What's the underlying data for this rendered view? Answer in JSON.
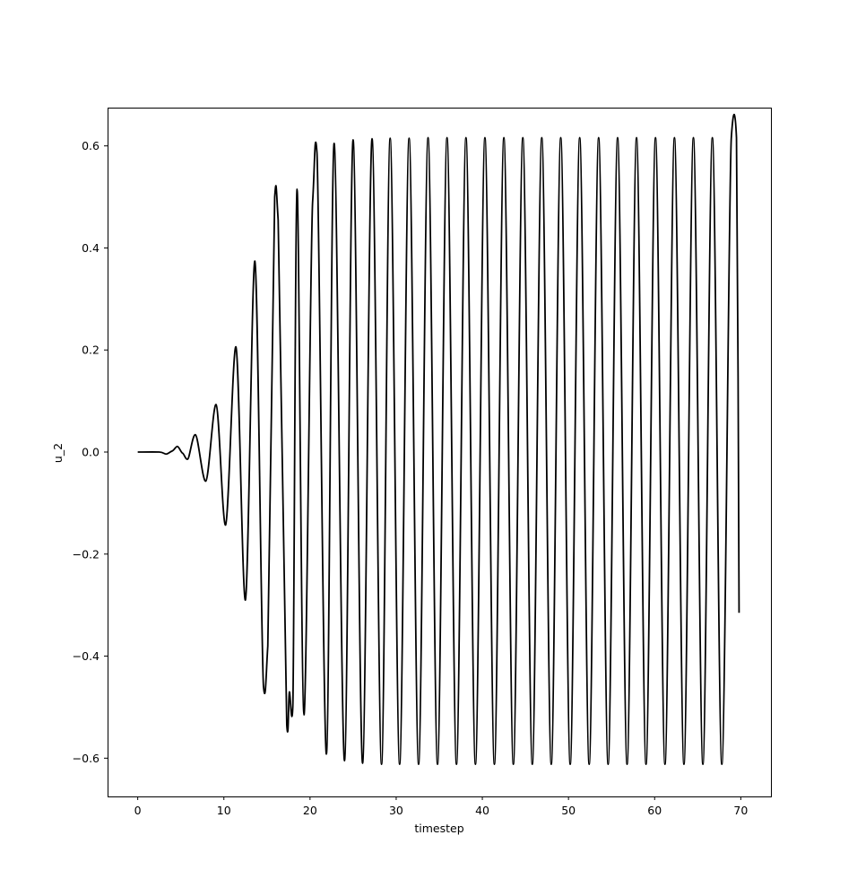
{
  "chart_data": {
    "type": "line",
    "title": "",
    "xlabel": "timestep",
    "ylabel": "u_2",
    "xlim": [
      -3.5,
      73.5
    ],
    "ylim": [
      -0.675,
      0.675
    ],
    "x_ticks": [
      0,
      10,
      20,
      30,
      40,
      50,
      60,
      70
    ],
    "y_ticks": [
      -0.6,
      -0.4,
      -0.2,
      0.0,
      0.2,
      0.4,
      0.6
    ],
    "x_tick_labels": [
      "0",
      "10",
      "20",
      "30",
      "40",
      "50",
      "60",
      "70"
    ],
    "y_tick_labels": [
      "−0.6",
      "−0.4",
      "−0.2",
      "0.0",
      "0.2",
      "0.4",
      "0.6"
    ],
    "grid": false,
    "line_color": "#000000",
    "series": [
      {
        "x": [
          0,
          2.5,
          3.3,
          4.0,
          4.6,
          5.2,
          5.8,
          6.7,
          7.9,
          9.1,
          10.2,
          11.4,
          12.5,
          13.6,
          14.6,
          15.1,
          15.9,
          16.3,
          17.3,
          17.6,
          18.0,
          18.5,
          19.3,
          20.3,
          20.8,
          21.9,
          22.8,
          24.0,
          25.0,
          26.1,
          27.2,
          28.3,
          29.3,
          30.4,
          31.5,
          32.6,
          33.7,
          34.8,
          35.9,
          37.0,
          38.1,
          39.2,
          40.3,
          41.4,
          42.5,
          43.6,
          44.7,
          45.8,
          46.9,
          48.0,
          49.1,
          50.2,
          51.3,
          52.4,
          53.5,
          54.6,
          55.7,
          56.8,
          57.9,
          59.0,
          60.1,
          61.2,
          62.3,
          63.4,
          64.5,
          65.6,
          66.7,
          67.8,
          68.9,
          69.5,
          69.8
        ],
        "y": [
          0.0,
          0.0,
          -0.004,
          0.002,
          0.011,
          -0.002,
          -0.014,
          0.034,
          -0.057,
          0.093,
          -0.143,
          0.206,
          -0.29,
          0.374,
          -0.46,
          -0.38,
          0.5,
          0.455,
          -0.535,
          -0.47,
          -0.5,
          0.515,
          -0.515,
          0.49,
          0.588,
          -0.592,
          0.605,
          -0.605,
          0.612,
          -0.61,
          0.614,
          -0.612,
          0.615,
          -0.612,
          0.615,
          -0.612,
          0.616,
          -0.612,
          0.616,
          -0.612,
          0.616,
          -0.612,
          0.616,
          -0.612,
          0.616,
          -0.612,
          0.616,
          -0.612,
          0.616,
          -0.612,
          0.616,
          -0.612,
          0.616,
          -0.612,
          0.616,
          -0.612,
          0.616,
          -0.612,
          0.616,
          -0.612,
          0.616,
          -0.612,
          0.616,
          -0.612,
          0.616,
          -0.612,
          0.616,
          -0.612,
          0.616,
          0.616,
          -0.315
        ]
      }
    ]
  }
}
